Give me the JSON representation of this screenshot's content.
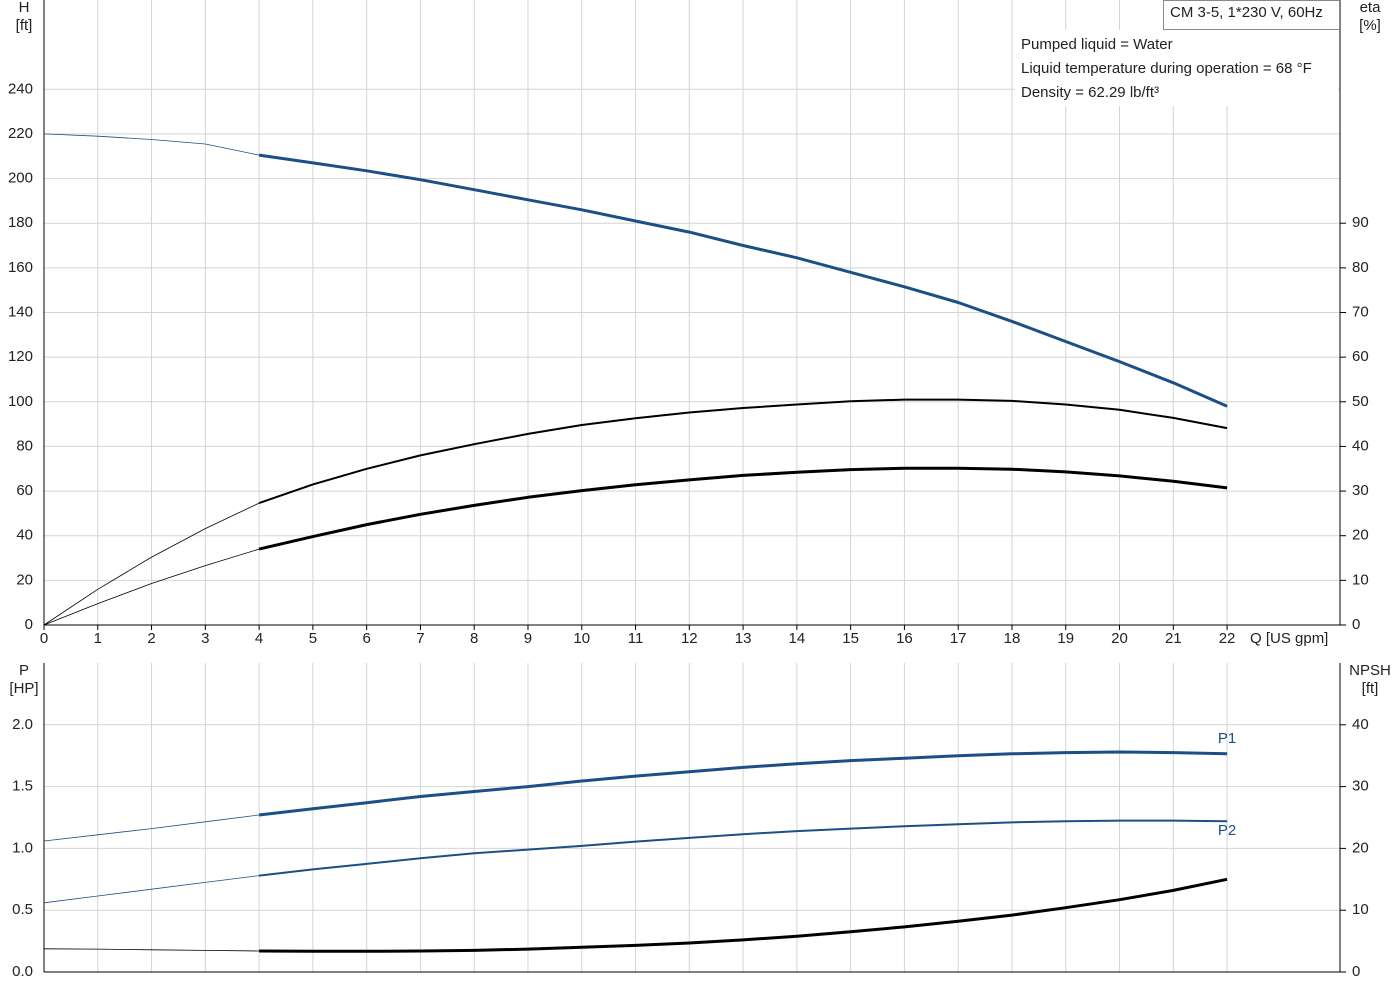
{
  "chart_data": [
    {
      "type": "line",
      "title": "CM 3-5, 1*230 V, 60Hz",
      "annotations": [
        "Pumped liquid = Water",
        "Liquid temperature during operation = 68 °F",
        "Density = 62.29 lb/ft³"
      ],
      "xlabel": "Q [US gpm]",
      "ylabel": [
        "H",
        "[ft]"
      ],
      "y2label": [
        "eta",
        "[%]"
      ],
      "x": [
        0,
        1,
        2,
        3,
        4,
        5,
        6,
        7,
        8,
        9,
        10,
        11,
        12,
        13,
        14,
        15,
        16,
        17,
        18,
        19,
        20,
        21,
        22
      ],
      "xlim": [
        0,
        24.1
      ],
      "xticks": [
        0,
        1,
        2,
        3,
        4,
        5,
        6,
        7,
        8,
        9,
        10,
        11,
        12,
        13,
        14,
        15,
        16,
        17,
        18,
        19,
        20,
        21,
        22
      ],
      "ylim": [
        0,
        280
      ],
      "yticks": [
        0,
        20,
        40,
        60,
        80,
        100,
        120,
        140,
        160,
        180,
        200,
        220,
        240
      ],
      "y2lim": [
        0,
        140
      ],
      "y2ticks": [
        0,
        10,
        20,
        30,
        40,
        50,
        60,
        70,
        80,
        90
      ],
      "grid": true,
      "thin_until_x": 4,
      "series": [
        {
          "color": "#1b4f86",
          "width": 3,
          "values": [
            220,
            219,
            217.5,
            215.5,
            210.5,
            207,
            203.5,
            199.5,
            195,
            190.5,
            186,
            181,
            176,
            170,
            164.5,
            158,
            151.5,
            144.5,
            136,
            127,
            118,
            108.5,
            98
          ]
        },
        {
          "color": "#000000",
          "width": 2,
          "axis": "y2",
          "values": [
            0,
            8,
            15.2,
            21.6,
            27.3,
            31.5,
            35,
            38,
            40.5,
            42.8,
            44.8,
            46.3,
            47.6,
            48.6,
            49.4,
            50.1,
            50.5,
            50.5,
            50.2,
            49.4,
            48.2,
            46.4,
            44.1
          ]
        },
        {
          "color": "#000000",
          "width": 3,
          "axis": "y2",
          "values": [
            0,
            4.8,
            9.3,
            13.3,
            17,
            19.8,
            22.5,
            24.8,
            26.8,
            28.6,
            30.1,
            31.4,
            32.5,
            33.5,
            34.2,
            34.8,
            35.1,
            35.1,
            34.9,
            34.3,
            33.4,
            32.2,
            30.7
          ]
        }
      ]
    },
    {
      "type": "line",
      "ylabel": [
        "P",
        "[HP]"
      ],
      "y2label": [
        "NPSH",
        "[ft]"
      ],
      "x": [
        0,
        1,
        2,
        3,
        4,
        5,
        6,
        7,
        8,
        9,
        10,
        11,
        12,
        13,
        14,
        15,
        16,
        17,
        18,
        19,
        20,
        21,
        22
      ],
      "xlim": [
        0,
        24.1
      ],
      "ylim": [
        0,
        2.5
      ],
      "yticks": [
        {
          "value": 0,
          "label": "0.0"
        },
        0.5,
        {
          "value": 1,
          "label": "1.0"
        },
        1.5,
        {
          "value": 2,
          "label": "2.0"
        }
      ],
      "y2lim": [
        0,
        50
      ],
      "y2ticks": [
        0,
        10,
        20,
        30,
        40
      ],
      "grid": true,
      "thin_until_x": 4,
      "series": [
        {
          "name": "P1",
          "label_side": "above",
          "color": "#1b4f86",
          "width": 3,
          "values": [
            1.06,
            1.11,
            1.16,
            1.215,
            1.27,
            1.32,
            1.37,
            1.42,
            1.46,
            1.5,
            1.545,
            1.585,
            1.62,
            1.655,
            1.685,
            1.71,
            1.73,
            1.75,
            1.765,
            1.775,
            1.78,
            1.775,
            1.765
          ]
        },
        {
          "name": "P2",
          "label_side": "below",
          "color": "#1b4f86",
          "width": 2,
          "values": [
            0.56,
            0.615,
            0.67,
            0.725,
            0.78,
            0.83,
            0.875,
            0.92,
            0.96,
            0.99,
            1.02,
            1.055,
            1.085,
            1.115,
            1.14,
            1.16,
            1.18,
            1.195,
            1.21,
            1.22,
            1.225,
            1.225,
            1.22
          ]
        },
        {
          "color": "#000000",
          "width": 3,
          "axis": "y2",
          "values": [
            3.75,
            3.7,
            3.6,
            3.5,
            3.4,
            3.35,
            3.35,
            3.4,
            3.5,
            3.7,
            4,
            4.3,
            4.7,
            5.2,
            5.8,
            6.5,
            7.3,
            8.2,
            9.2,
            10.4,
            11.7,
            13.2,
            15
          ]
        }
      ]
    }
  ]
}
